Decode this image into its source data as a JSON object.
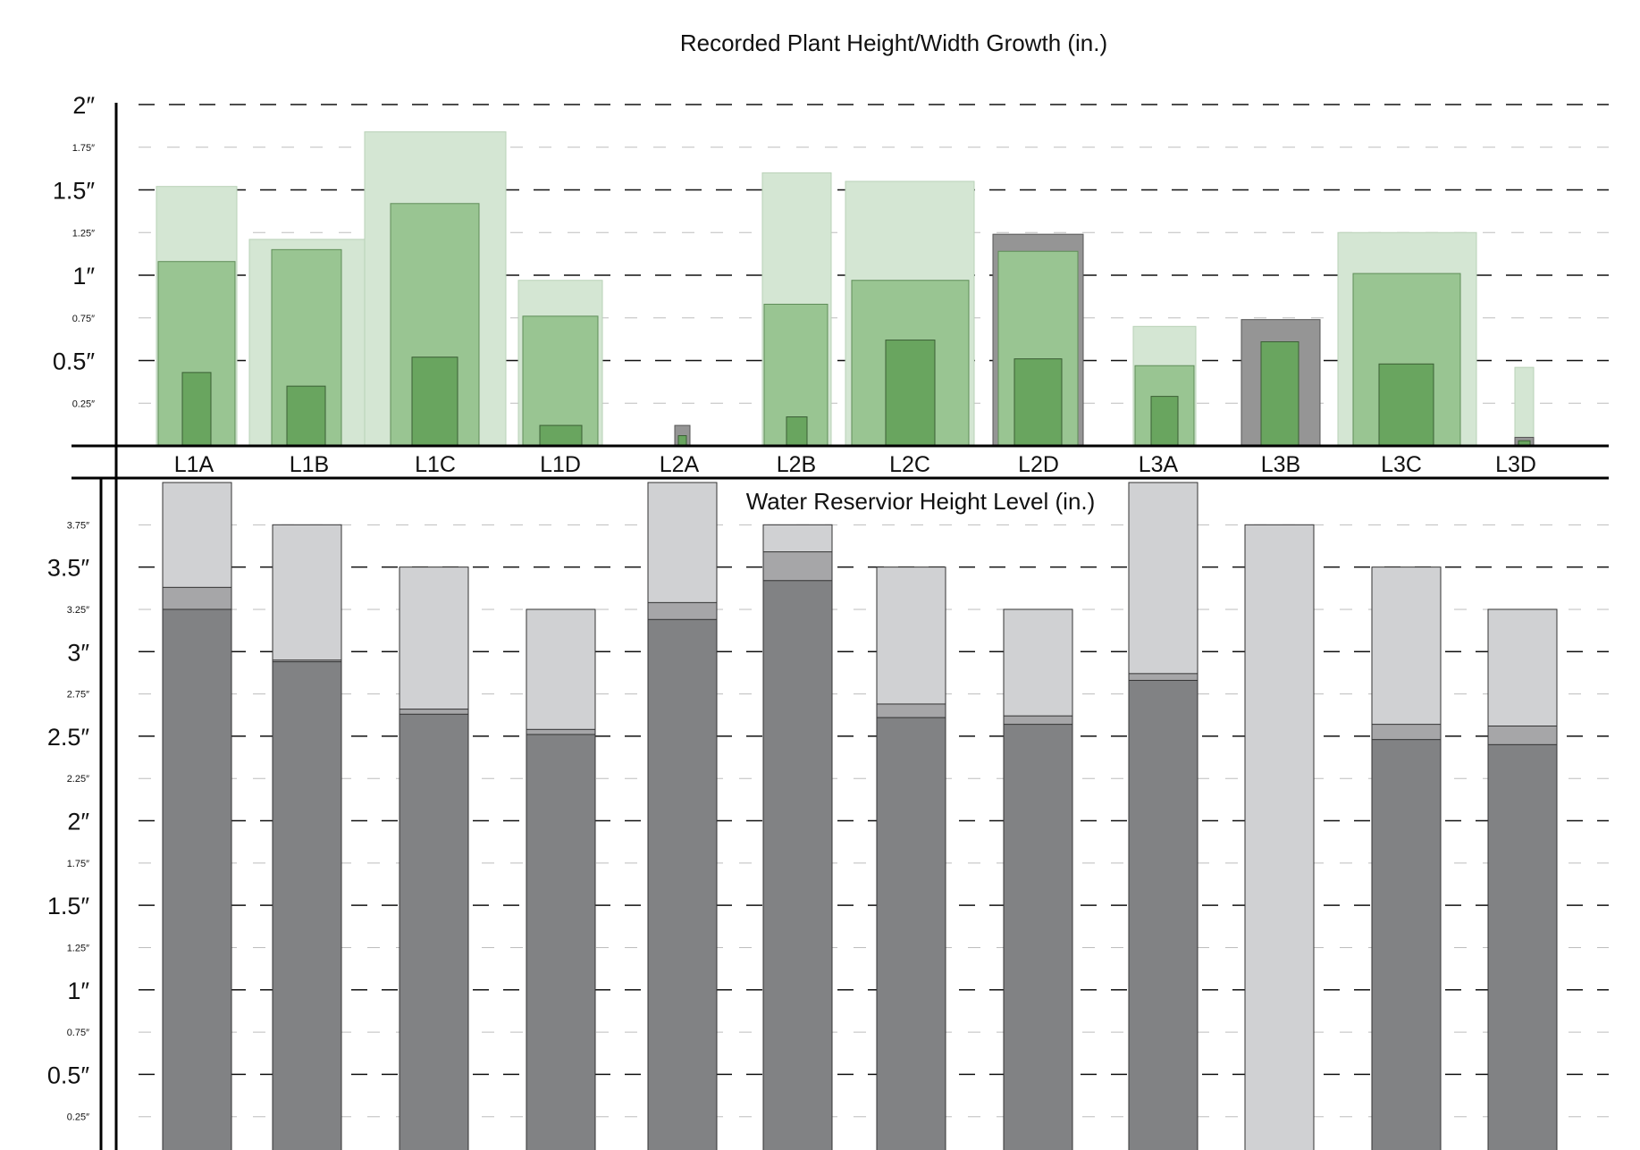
{
  "chart_data": [
    {
      "type": "bar",
      "title": "Recorded Plant Height/Width Growth (in.)",
      "ylim": [
        0,
        2
      ],
      "y_ticks_major": [
        {
          "value": 2,
          "label": "2″"
        },
        {
          "value": 1.5,
          "label": "1.5″"
        },
        {
          "value": 1,
          "label": "1″"
        },
        {
          "value": 0.5,
          "label": "0.5″"
        }
      ],
      "y_ticks_minor": [
        {
          "value": 1.75,
          "label": "1.75″"
        },
        {
          "value": 1.25,
          "label": "1.25″"
        },
        {
          "value": 0.75,
          "label": "0.75″"
        },
        {
          "value": 0.25,
          "label": "0.25″"
        }
      ],
      "grid": true,
      "categories": [
        "L1A",
        "L1B",
        "L1C",
        "L1D",
        "L2A",
        "L2B",
        "L2C",
        "L2D",
        "L3A",
        "L3B",
        "L3C",
        "L3D"
      ],
      "series": [
        {
          "color": "#d4e6d3",
          "values": [
            1.52,
            1.21,
            1.84,
            0.97,
            0,
            1.6,
            1.55,
            0,
            0.7,
            0,
            1.25,
            0.46
          ]
        },
        {
          "color": "#959595",
          "values": [
            0,
            0,
            0,
            0,
            0.12,
            0,
            0,
            1.24,
            0,
            0.74,
            0,
            0.05
          ]
        },
        {
          "color": "#99c592",
          "values": [
            1.08,
            1.15,
            1.42,
            0.76,
            0,
            0.83,
            0.97,
            1.14,
            0.47,
            0,
            1.01,
            0
          ]
        },
        {
          "color": "#69a55f",
          "values": [
            0.43,
            0.35,
            0.52,
            0.12,
            0.06,
            0.17,
            0.62,
            0.51,
            0.29,
            0.61,
            0.48,
            0.03
          ]
        }
      ]
    },
    {
      "type": "bar",
      "title": "Water Reservior Height Level (in.)",
      "ylim": [
        0,
        4
      ],
      "y_ticks_major": [
        {
          "value": 3.5,
          "label": "3.5″"
        },
        {
          "value": 3,
          "label": "3″"
        },
        {
          "value": 2.5,
          "label": "2.5″"
        },
        {
          "value": 2,
          "label": "2″"
        },
        {
          "value": 1.5,
          "label": "1.5″"
        },
        {
          "value": 1,
          "label": "1″"
        },
        {
          "value": 0.5,
          "label": "0.5″"
        }
      ],
      "y_ticks_minor": [
        {
          "value": 3.75,
          "label": "3.75″"
        },
        {
          "value": 3.25,
          "label": "3.25″"
        },
        {
          "value": 2.75,
          "label": "2.75″"
        },
        {
          "value": 2.25,
          "label": "2.25″"
        },
        {
          "value": 1.75,
          "label": "1.75″"
        },
        {
          "value": 1.25,
          "label": "1.25″"
        },
        {
          "value": 0.75,
          "label": "0.75″"
        },
        {
          "value": 0.25,
          "label": "0.25″"
        }
      ],
      "grid": true,
      "categories": [
        "L1A",
        "L1B",
        "L1C",
        "L1D",
        "L2A",
        "L2B",
        "L2C",
        "L2D",
        "L3A",
        "L3B",
        "L3C",
        "L3D"
      ],
      "series": [
        {
          "color": "#d0d1d3",
          "values": [
            4.0,
            3.75,
            3.5,
            3.25,
            4.0,
            3.75,
            3.5,
            3.25,
            4.0,
            3.75,
            3.5,
            3.25
          ]
        },
        {
          "color": "#a6a6a8",
          "values": [
            3.38,
            2.95,
            2.66,
            2.54,
            3.29,
            3.59,
            2.69,
            2.62,
            2.87,
            0,
            2.57,
            2.56
          ]
        },
        {
          "color": "#818284",
          "values": [
            3.25,
            2.94,
            2.63,
            2.51,
            3.19,
            3.42,
            2.61,
            2.57,
            2.83,
            0,
            2.48,
            2.45
          ]
        }
      ]
    }
  ]
}
